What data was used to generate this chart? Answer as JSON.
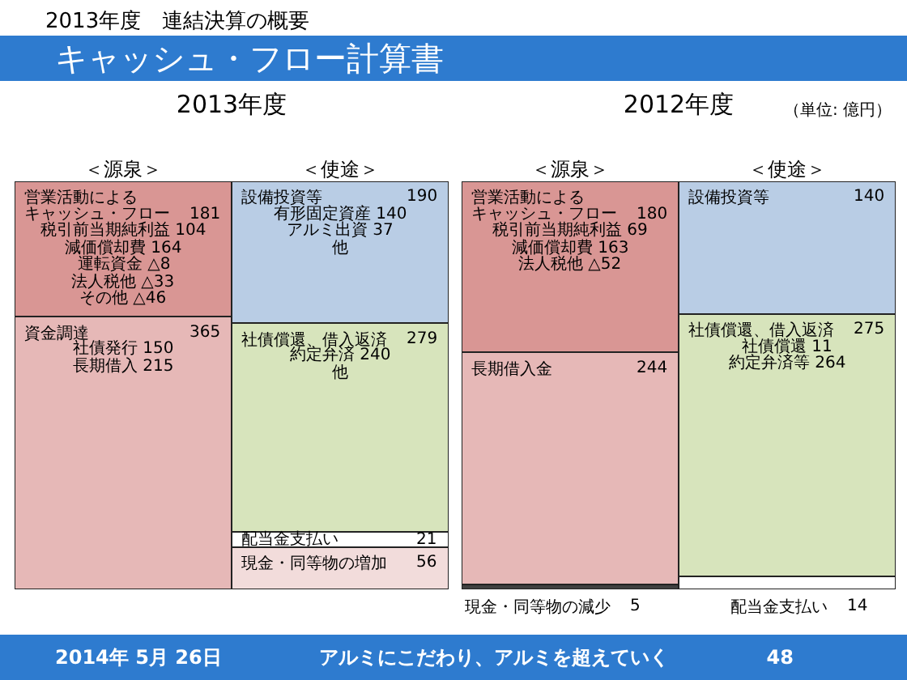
{
  "chart_data": [
    {
      "type": "other",
      "title": "キャッシュ・フロー計算書",
      "subtitle": "2013年度　連結決算の概要"
    },
    {
      "type": "bar",
      "title": "2013年度",
      "stacked": true,
      "legend": false,
      "categories": [
        "＜源泉＞",
        "＜使途＞"
      ],
      "series": [
        {
          "name": "資金調達",
          "color": "#e6b8b7",
          "values": [
            365,
            null
          ],
          "value_labels": [
            "365",
            null
          ]
        },
        {
          "name": "営業活動によるキャッシュ・フロー",
          "color": "#d99694",
          "values": [
            181,
            null
          ],
          "value_labels": [
            "181",
            null
          ]
        },
        {
          "name": "現金・同等物の増加",
          "color": "#f2dcdb",
          "values": [
            null,
            56
          ],
          "value_labels": [
            null,
            "56"
          ]
        },
        {
          "name": "配当金支払い",
          "color": "#ffffff",
          "values": [
            null,
            21
          ],
          "value_labels": [
            null,
            "21"
          ]
        },
        {
          "name": "社債償還、借入返済",
          "color": "#d7e4bc",
          "values": [
            null,
            279
          ],
          "value_labels": [
            null,
            "279"
          ]
        },
        {
          "name": "設備投資等",
          "color": "#b9cde5",
          "values": [
            null,
            190
          ],
          "value_labels": [
            null,
            "190"
          ]
        }
      ],
      "annotations": [
        {
          "text": "税引前当期純利益 104\n減価償却費 164\n運転資金 △8\n法人税他 △33\nその他 △46",
          "x": "＜源泉＞",
          "y": 546
        },
        {
          "text": "社債発行 150\n長期借入 215",
          "x": "＜源泉＞",
          "y": 365
        },
        {
          "text": "有形固定資産 140\nアルミ出資 37\n他",
          "x": "＜使途＞",
          "y": 546
        },
        {
          "text": "約定弁済 240\n他",
          "x": "＜使途＞",
          "y": 356
        }
      ]
    },
    {
      "type": "bar",
      "title": "2012年度",
      "stacked": true,
      "legend": false,
      "categories": [
        "＜源泉＞",
        "＜使途＞"
      ],
      "series": [
        {
          "name": "現金・同等物の減少",
          "color": "#404040",
          "values": [
            5,
            null
          ],
          "value_labels": [
            "5",
            null
          ]
        },
        {
          "name": "長期借入金",
          "color": "#e6b8b7",
          "values": [
            244,
            null
          ],
          "value_labels": [
            "244",
            null
          ]
        },
        {
          "name": "営業活動によるキャッシュ・フロー",
          "color": "#d99694",
          "values": [
            180,
            null
          ],
          "value_labels": [
            "180",
            null
          ]
        },
        {
          "name": "配当金支払い",
          "color": "#ffffff",
          "values": [
            null,
            14
          ],
          "value_labels": [
            null,
            "14"
          ]
        },
        {
          "name": "社債償還、借入返済",
          "color": "#d7e4bc",
          "values": [
            null,
            275
          ],
          "value_labels": [
            null,
            "275"
          ]
        },
        {
          "name": "設備投資等",
          "color": "#b9cde5",
          "values": [
            null,
            140
          ],
          "value_labels": [
            null,
            "140"
          ]
        }
      ],
      "annotations": [
        "（単位: 億円）",
        {
          "text": "税引前当期純利益 69\n減価償却費 163\n法人税他 △52",
          "x": "＜源泉＞",
          "y": 429
        },
        {
          "text": "社債償還 11\n約定弁済等 264",
          "x": "＜使途＞",
          "y": 289
        }
      ]
    },
    {
      "type": "other",
      "annotations": [
        "2014年 5月 26日",
        "アルミにこだわり、アルミを超えていく",
        "48"
      ]
    }
  ]
}
